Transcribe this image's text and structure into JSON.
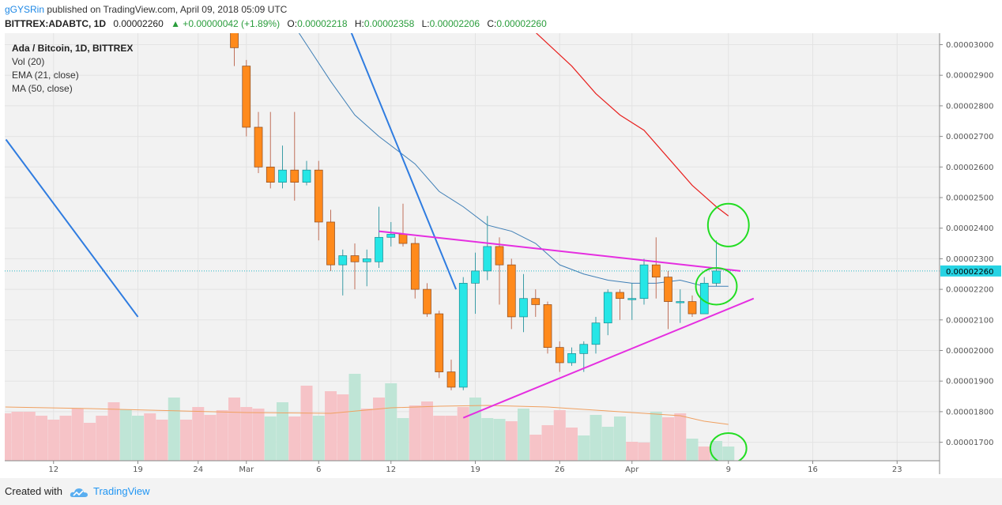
{
  "header": {
    "author": "gGYSRin",
    "published": "published on TradingView.com, April 09, 2018 05:09 UTC",
    "symbol": "BITTREX:ADABTC, 1D",
    "last": "0.00002260",
    "change": "▲ +0.00000042 (+1.89%)",
    "o_label": "O:",
    "o": "0.00002218",
    "h_label": "H:",
    "h": "0.00002358",
    "l_label": "L:",
    "l": "0.00002206",
    "c_label": "C:",
    "c": "0.00002260"
  },
  "legend": {
    "title": "Ada / Bitcoin, 1D, BITTREX",
    "vol": "Vol (20)",
    "ema": "EMA (21, close)",
    "ma": "MA (50, close)"
  },
  "footer": {
    "created": "Created with",
    "brand": "TradingView"
  },
  "colors": {
    "up": "#26e6e6",
    "down": "#ff8a1c",
    "vol_up": "#bfe5d6",
    "vol_down": "#f6c3c7",
    "ema": "#3f7fb6",
    "ma": "#e8211f",
    "trend_magenta": "#e52ee0",
    "trend_blue": "#2f7ce0",
    "circle": "#22dd22",
    "price_line": "#26b6c6"
  },
  "chart_data": {
    "type": "candlestick",
    "title": "Ada / Bitcoin, 1D, BITTREX",
    "y_ticks": [
      "0.00003000",
      "0.00002900",
      "0.00002800",
      "0.00002700",
      "0.00002600",
      "0.00002500",
      "0.00002400",
      "0.00002300",
      "0.00002200",
      "0.00002100",
      "0.00002000",
      "0.00001900",
      "0.00001800",
      "0.00001700"
    ],
    "ylim": [
      1.64e-05,
      3.04e-05
    ],
    "current_price_label": "0.00002260",
    "current_price": 2.26e-05,
    "x_ticks": [
      {
        "label": "12",
        "day": 12
      },
      {
        "label": "19",
        "day": 19
      },
      {
        "label": "24",
        "day": 24
      },
      {
        "label": "Mar",
        "day": 28
      },
      {
        "label": "6",
        "day": 34
      },
      {
        "label": "12",
        "day": 40
      },
      {
        "label": "19",
        "day": 47
      },
      {
        "label": "26",
        "day": 54
      },
      {
        "label": "Apr",
        "day": 60
      },
      {
        "label": "9",
        "day": 68
      },
      {
        "label": "16",
        "day": 75
      },
      {
        "label": "23",
        "day": 82
      }
    ],
    "candles": [
      {
        "day": 27,
        "open": 3.08e-05,
        "close": 2.99e-05,
        "high": 3.09e-05,
        "low": 2.93e-05
      },
      {
        "day": 28,
        "open": 2.93e-05,
        "close": 2.73e-05,
        "high": 2.95e-05,
        "low": 2.7e-05
      },
      {
        "day": 29,
        "open": 2.73e-05,
        "close": 2.6e-05,
        "high": 2.78e-05,
        "low": 2.58e-05
      },
      {
        "day": 30,
        "open": 2.6e-05,
        "close": 2.55e-05,
        "high": 2.78e-05,
        "low": 2.53e-05
      },
      {
        "day": 31,
        "open": 2.55e-05,
        "close": 2.59e-05,
        "high": 2.67e-05,
        "low": 2.53e-05
      },
      {
        "day": 32,
        "open": 2.59e-05,
        "close": 2.55e-05,
        "high": 2.78e-05,
        "low": 2.49e-05
      },
      {
        "day": 33,
        "open": 2.55e-05,
        "close": 2.59e-05,
        "high": 2.62e-05,
        "low": 2.54e-05
      },
      {
        "day": 34,
        "open": 2.59e-05,
        "close": 2.42e-05,
        "high": 2.62e-05,
        "low": 2.36e-05
      },
      {
        "day": 35,
        "open": 2.42e-05,
        "close": 2.28e-05,
        "high": 2.46e-05,
        "low": 2.26e-05
      },
      {
        "day": 36,
        "open": 2.28e-05,
        "close": 2.31e-05,
        "high": 2.33e-05,
        "low": 2.18e-05
      },
      {
        "day": 37,
        "open": 2.31e-05,
        "close": 2.29e-05,
        "high": 2.35e-05,
        "low": 2.2e-05
      },
      {
        "day": 38,
        "open": 2.29e-05,
        "close": 2.3e-05,
        "high": 2.33e-05,
        "low": 2.21e-05
      },
      {
        "day": 39,
        "open": 2.29e-05,
        "close": 2.37e-05,
        "high": 2.47e-05,
        "low": 2.27e-05
      },
      {
        "day": 40,
        "open": 2.37e-05,
        "close": 2.38e-05,
        "high": 2.42e-05,
        "low": 2.34e-05
      },
      {
        "day": 41,
        "open": 2.38e-05,
        "close": 2.35e-05,
        "high": 2.48e-05,
        "low": 2.34e-05
      },
      {
        "day": 42,
        "open": 2.35e-05,
        "close": 2.2e-05,
        "high": 2.37e-05,
        "low": 2.17e-05
      },
      {
        "day": 43,
        "open": 2.2e-05,
        "close": 2.12e-05,
        "high": 2.22e-05,
        "low": 2.11e-05
      },
      {
        "day": 44,
        "open": 2.12e-05,
        "close": 1.93e-05,
        "high": 2.13e-05,
        "low": 1.91e-05
      },
      {
        "day": 45,
        "open": 1.93e-05,
        "close": 1.88e-05,
        "high": 1.97e-05,
        "low": 1.87e-05
      },
      {
        "day": 46,
        "open": 1.88e-05,
        "close": 2.22e-05,
        "high": 2.24e-05,
        "low": 1.87e-05
      },
      {
        "day": 47,
        "open": 2.22e-05,
        "close": 2.26e-05,
        "high": 2.32e-05,
        "low": 2.12e-05
      },
      {
        "day": 48,
        "open": 2.26e-05,
        "close": 2.34e-05,
        "high": 2.44e-05,
        "low": 2.23e-05
      },
      {
        "day": 49,
        "open": 2.34e-05,
        "close": 2.28e-05,
        "high": 2.37e-05,
        "low": 2.15e-05
      },
      {
        "day": 50,
        "open": 2.28e-05,
        "close": 2.11e-05,
        "high": 2.3e-05,
        "low": 2.07e-05
      },
      {
        "day": 51,
        "open": 2.11e-05,
        "close": 2.17e-05,
        "high": 2.25e-05,
        "low": 2.06e-05
      },
      {
        "day": 52,
        "open": 2.17e-05,
        "close": 2.15e-05,
        "high": 2.2e-05,
        "low": 2.11e-05
      },
      {
        "day": 53,
        "open": 2.15e-05,
        "close": 2.01e-05,
        "high": 2.16e-05,
        "low": 1.99e-05
      },
      {
        "day": 54,
        "open": 2.01e-05,
        "close": 1.96e-05,
        "high": 2.03e-05,
        "low": 1.93e-05
      },
      {
        "day": 55,
        "open": 1.96e-05,
        "close": 1.99e-05,
        "high": 2.01e-05,
        "low": 1.95e-05
      },
      {
        "day": 56,
        "open": 1.99e-05,
        "close": 2.02e-05,
        "high": 2.03e-05,
        "low": 1.93e-05
      },
      {
        "day": 57,
        "open": 2.02e-05,
        "close": 2.09e-05,
        "high": 2.11e-05,
        "low": 1.99e-05
      },
      {
        "day": 58,
        "open": 2.09e-05,
        "close": 2.19e-05,
        "high": 2.2e-05,
        "low": 2.05e-05
      },
      {
        "day": 59,
        "open": 2.19e-05,
        "close": 2.17e-05,
        "high": 2.2e-05,
        "low": 2.1e-05
      },
      {
        "day": 60,
        "open": 2.17e-05,
        "close": 2.17e-05,
        "high": 2.22e-05,
        "low": 2.1e-05
      },
      {
        "day": 61,
        "open": 2.17e-05,
        "close": 2.28e-05,
        "high": 2.3e-05,
        "low": 2.15e-05
      },
      {
        "day": 62,
        "open": 2.28e-05,
        "close": 2.24e-05,
        "high": 2.37e-05,
        "low": 2.17e-05
      },
      {
        "day": 63,
        "open": 2.24e-05,
        "close": 2.16e-05,
        "high": 2.26e-05,
        "low": 2.07e-05
      },
      {
        "day": 64,
        "open": 2.16e-05,
        "close": 2.16e-05,
        "high": 2.2e-05,
        "low": 2.09e-05
      },
      {
        "day": 65,
        "open": 2.16e-05,
        "close": 2.12e-05,
        "high": 2.18e-05,
        "low": 2.11e-05
      },
      {
        "day": 66,
        "open": 2.12e-05,
        "close": 2.22e-05,
        "high": 2.24e-05,
        "low": 2.12e-05
      },
      {
        "day": 67,
        "open": 2.22e-05,
        "close": 2.26e-05,
        "high": 2.36e-05,
        "low": 2.21e-05
      }
    ],
    "volume": [
      {
        "day": 8,
        "v": 0.6,
        "up": false
      },
      {
        "day": 9,
        "v": 0.62,
        "up": false
      },
      {
        "day": 10,
        "v": 0.62,
        "up": false
      },
      {
        "day": 11,
        "v": 0.57,
        "up": false
      },
      {
        "day": 12,
        "v": 0.52,
        "up": false
      },
      {
        "day": 13,
        "v": 0.57,
        "up": false
      },
      {
        "day": 14,
        "v": 0.66,
        "up": false
      },
      {
        "day": 15,
        "v": 0.48,
        "up": false
      },
      {
        "day": 16,
        "v": 0.57,
        "up": false
      },
      {
        "day": 17,
        "v": 0.74,
        "up": false
      },
      {
        "day": 18,
        "v": 0.65,
        "up": true
      },
      {
        "day": 19,
        "v": 0.57,
        "up": true
      },
      {
        "day": 20,
        "v": 0.6,
        "up": false
      },
      {
        "day": 21,
        "v": 0.52,
        "up": false
      },
      {
        "day": 22,
        "v": 0.8,
        "up": true
      },
      {
        "day": 23,
        "v": 0.52,
        "up": false
      },
      {
        "day": 24,
        "v": 0.68,
        "up": false
      },
      {
        "day": 25,
        "v": 0.58,
        "up": false
      },
      {
        "day": 26,
        "v": 0.64,
        "up": false
      },
      {
        "day": 27,
        "v": 0.8,
        "up": false
      },
      {
        "day": 28,
        "v": 0.68,
        "up": false
      },
      {
        "day": 29,
        "v": 0.66,
        "up": false
      },
      {
        "day": 30,
        "v": 0.56,
        "up": true
      },
      {
        "day": 31,
        "v": 0.74,
        "up": true
      },
      {
        "day": 32,
        "v": 0.56,
        "up": false
      },
      {
        "day": 33,
        "v": 0.95,
        "up": false
      },
      {
        "day": 34,
        "v": 0.57,
        "up": true
      },
      {
        "day": 35,
        "v": 0.88,
        "up": false
      },
      {
        "day": 36,
        "v": 0.84,
        "up": false
      },
      {
        "day": 37,
        "v": 1.1,
        "up": true
      },
      {
        "day": 38,
        "v": 0.66,
        "up": false
      },
      {
        "day": 39,
        "v": 0.8,
        "up": false
      },
      {
        "day": 40,
        "v": 0.98,
        "up": true
      },
      {
        "day": 41,
        "v": 0.54,
        "up": true
      },
      {
        "day": 42,
        "v": 0.7,
        "up": false
      },
      {
        "day": 43,
        "v": 0.75,
        "up": false
      },
      {
        "day": 44,
        "v": 0.57,
        "up": false
      },
      {
        "day": 45,
        "v": 0.57,
        "up": false
      },
      {
        "day": 46,
        "v": 0.68,
        "up": false
      },
      {
        "day": 47,
        "v": 0.8,
        "up": true
      },
      {
        "day": 48,
        "v": 0.54,
        "up": true
      },
      {
        "day": 49,
        "v": 0.53,
        "up": true
      },
      {
        "day": 50,
        "v": 0.5,
        "up": false
      },
      {
        "day": 51,
        "v": 0.66,
        "up": true
      },
      {
        "day": 52,
        "v": 0.33,
        "up": false
      },
      {
        "day": 53,
        "v": 0.45,
        "up": false
      },
      {
        "day": 54,
        "v": 0.64,
        "up": false
      },
      {
        "day": 55,
        "v": 0.42,
        "up": false
      },
      {
        "day": 56,
        "v": 0.32,
        "up": true
      },
      {
        "day": 57,
        "v": 0.58,
        "up": true
      },
      {
        "day": 58,
        "v": 0.43,
        "up": true
      },
      {
        "day": 59,
        "v": 0.56,
        "up": true
      },
      {
        "day": 60,
        "v": 0.24,
        "up": false
      },
      {
        "day": 61,
        "v": 0.23,
        "up": false
      },
      {
        "day": 62,
        "v": 0.62,
        "up": true
      },
      {
        "day": 63,
        "v": 0.55,
        "up": false
      },
      {
        "day": 64,
        "v": 0.6,
        "up": false
      },
      {
        "day": 65,
        "v": 0.28,
        "up": true
      },
      {
        "day": 66,
        "v": 0.18,
        "up": false
      },
      {
        "day": 67,
        "v": 0.25,
        "up": true
      },
      {
        "day": 68,
        "v": 0.18,
        "up": true
      }
    ],
    "volume_ma": [
      {
        "day": 8,
        "v": 0.68
      },
      {
        "day": 15,
        "v": 0.66
      },
      {
        "day": 20,
        "v": 0.64
      },
      {
        "day": 28,
        "v": 0.61
      },
      {
        "day": 35,
        "v": 0.6
      },
      {
        "day": 40,
        "v": 0.67
      },
      {
        "day": 44,
        "v": 0.69
      },
      {
        "day": 48,
        "v": 0.7
      },
      {
        "day": 53,
        "v": 0.68
      },
      {
        "day": 58,
        "v": 0.63
      },
      {
        "day": 61,
        "v": 0.6
      },
      {
        "day": 64,
        "v": 0.57
      },
      {
        "day": 66,
        "v": 0.5
      },
      {
        "day": 68,
        "v": 0.46
      }
    ],
    "ema21": [
      {
        "day": 31,
        "p": 3.12e-05
      },
      {
        "day": 33,
        "p": 3e-05
      },
      {
        "day": 35,
        "p": 2.88e-05
      },
      {
        "day": 37,
        "p": 2.77e-05
      },
      {
        "day": 39,
        "p": 2.7e-05
      },
      {
        "day": 42,
        "p": 2.61e-05
      },
      {
        "day": 44,
        "p": 2.52e-05
      },
      {
        "day": 46,
        "p": 2.47e-05
      },
      {
        "day": 48,
        "p": 2.41e-05
      },
      {
        "day": 50,
        "p": 2.39e-05
      },
      {
        "day": 52,
        "p": 2.35e-05
      },
      {
        "day": 54,
        "p": 2.28e-05
      },
      {
        "day": 56,
        "p": 2.25e-05
      },
      {
        "day": 58,
        "p": 2.23e-05
      },
      {
        "day": 60,
        "p": 2.22e-05
      },
      {
        "day": 62,
        "p": 2.22e-05
      },
      {
        "day": 64,
        "p": 2.23e-05
      },
      {
        "day": 66,
        "p": 2.21e-05
      },
      {
        "day": 68,
        "p": 2.21e-05
      }
    ],
    "ma50": [
      {
        "day": 52,
        "p": 3.04e-05
      },
      {
        "day": 55,
        "p": 2.93e-05
      },
      {
        "day": 57,
        "p": 2.84e-05
      },
      {
        "day": 59,
        "p": 2.77e-05
      },
      {
        "day": 61,
        "p": 2.72e-05
      },
      {
        "day": 63,
        "p": 2.63e-05
      },
      {
        "day": 65,
        "p": 2.54e-05
      },
      {
        "day": 67,
        "p": 2.47e-05
      },
      {
        "day": 68,
        "p": 2.44e-05
      }
    ],
    "drawings": {
      "blue_lines": [
        {
          "x1": 8.05,
          "y1": 2.69e-05,
          "x2": 19,
          "y2": 2.11e-05
        },
        {
          "x1": 36.6,
          "y1": 3.05e-05,
          "x2": 45.4,
          "y2": 2.2e-05
        }
      ],
      "magenta_lines": [
        {
          "x1": 39.0,
          "y1": 2.39e-05,
          "x2": 69.0,
          "y2": 2.26e-05
        },
        {
          "x1": 46.0,
          "y1": 1.78e-05,
          "x2": 70.1,
          "y2": 2.17e-05
        }
      ],
      "circles": [
        {
          "day": 68,
          "price": 2.41e-05,
          "rx": 1.7,
          "ry": 7e-07
        },
        {
          "day": 67,
          "price": 2.21e-05,
          "rx": 1.7,
          "ry": 6e-07
        },
        {
          "day": 68,
          "price": 1.68e-05,
          "rx": 1.5,
          "ry": 5e-07
        }
      ]
    }
  }
}
